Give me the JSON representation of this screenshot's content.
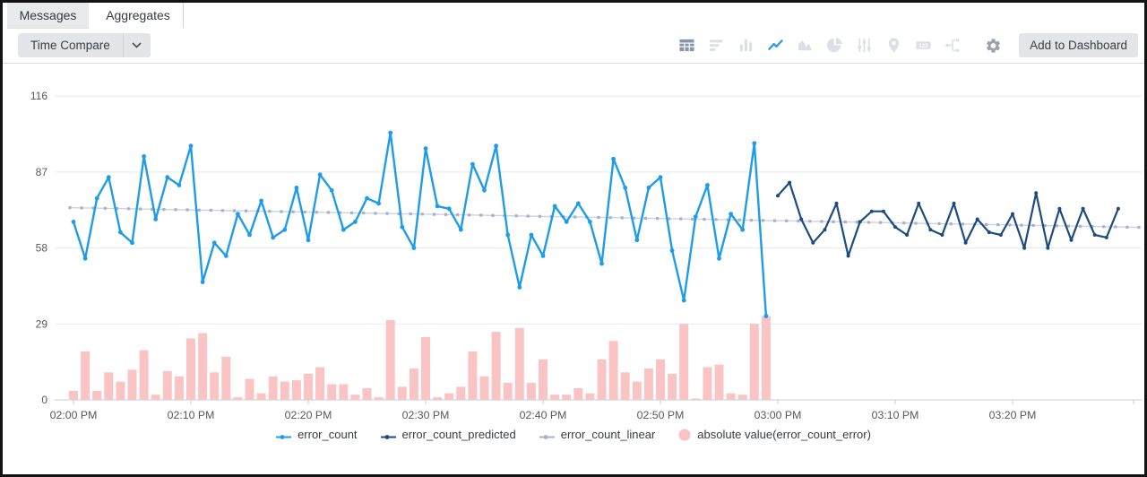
{
  "tabs": {
    "messages": "Messages",
    "aggregates": "Aggregates",
    "active": "Aggregates"
  },
  "toolbar": {
    "time_compare_label": "Time Compare",
    "add_to_dashboard_label": "Add to Dashboard",
    "icon_badge_text": "123",
    "icons": [
      {
        "name": "table-icon",
        "state": "dark"
      },
      {
        "name": "bar-chart-horizontal-icon",
        "state": "pale"
      },
      {
        "name": "column-chart-icon",
        "state": "pale"
      },
      {
        "name": "line-chart-icon",
        "state": "active-blue"
      },
      {
        "name": "area-chart-icon",
        "state": "pale"
      },
      {
        "name": "pie-chart-icon",
        "state": "pale"
      },
      {
        "name": "sliders-icon",
        "state": "pale"
      },
      {
        "name": "map-pin-icon",
        "state": "pale"
      },
      {
        "name": "single-value-123-icon",
        "state": "pale"
      },
      {
        "name": "transpose-icon",
        "state": "pale"
      },
      {
        "name": "settings-gear-icon",
        "state": "dark"
      }
    ]
  },
  "chart_data": {
    "type": "mixed",
    "title": "",
    "x_axis": {
      "tick_labels": [
        "02:00 PM",
        "02:10 PM",
        "02:20 PM",
        "02:30 PM",
        "02:40 PM",
        "02:50 PM",
        "03:00 PM",
        "03:10 PM",
        "03:20 PM"
      ],
      "minutes_per_point": 1,
      "grid": false
    },
    "y_axis": {
      "ticks": [
        0,
        29,
        58,
        87,
        116
      ],
      "lim": [
        0,
        116
      ],
      "grid": true
    },
    "legend_position": "bottom",
    "series": [
      {
        "name": "error_count",
        "type": "line",
        "color": "#1e9ce9",
        "start_minute": 0,
        "values": [
          68,
          54,
          77,
          85,
          64,
          60,
          93,
          69,
          85,
          82,
          97,
          45,
          60,
          55,
          71,
          63,
          76,
          62,
          65,
          81,
          61,
          86,
          80,
          65,
          68,
          77,
          75,
          102,
          66,
          58,
          96,
          74,
          73,
          65,
          90,
          80,
          97,
          63,
          43,
          63,
          55,
          74,
          68,
          75,
          68,
          52,
          92,
          81,
          61,
          81,
          85,
          57,
          38,
          70,
          82,
          54,
          71,
          65,
          98,
          32
        ]
      },
      {
        "name": "error_count_predicted",
        "type": "line",
        "color": "#1c4b80",
        "start_minute": 60,
        "values": [
          78,
          83,
          69,
          60,
          65,
          75,
          55,
          68,
          72,
          72,
          66,
          63,
          75,
          65,
          63,
          75,
          60,
          69,
          64,
          63,
          71,
          58,
          79,
          58,
          73,
          61,
          73,
          63,
          62,
          73
        ]
      },
      {
        "name": "error_count_linear",
        "type": "line-markers",
        "color": "#a8b1cb",
        "line_color": "#cdd3e0",
        "start_value": 73.4,
        "end_value": 65.9,
        "n_points": 92
      },
      {
        "name": "absolute value(error_count_error)",
        "type": "bar",
        "color": "#f9c4c3",
        "start_minute": 0,
        "values": [
          3.5,
          18.5,
          3.5,
          10.5,
          7,
          11.5,
          19,
          2,
          11,
          9,
          23.5,
          25.5,
          10.5,
          16.5,
          1,
          8,
          2.5,
          9,
          7,
          7.5,
          10,
          12.5,
          6,
          6,
          2,
          4.5,
          1,
          30.5,
          5,
          12,
          24,
          1,
          2.5,
          5,
          18.5,
          9,
          26,
          6.5,
          27.5,
          6.5,
          15.5,
          2,
          2,
          4.5,
          2.5,
          15.5,
          22.5,
          10.5,
          7,
          12,
          15.5,
          10,
          29,
          0.5,
          12.5,
          13.5,
          2.5,
          2,
          29,
          32
        ]
      }
    ]
  }
}
